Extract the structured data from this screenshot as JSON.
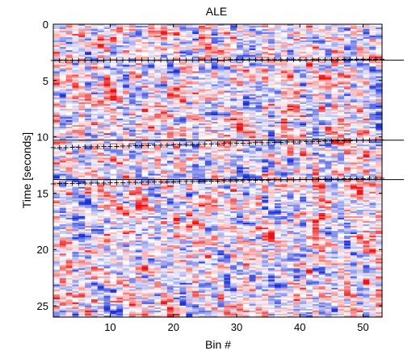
{
  "chart_data": {
    "type": "heatmap",
    "title": "ALE",
    "xlabel": "Bin #",
    "ylabel": "Time [seconds]",
    "xlim": [
      1,
      53
    ],
    "ylim": [
      0,
      26
    ],
    "y_reversed": true,
    "x_ticks": [
      10,
      20,
      30,
      40,
      50
    ],
    "y_ticks": [
      0,
      5,
      10,
      15,
      20,
      25
    ],
    "colormap": [
      "#1e32dc",
      "#ffffff",
      "#ee1111"
    ],
    "boundary_times": [
      3.2,
      10.3,
      13.8
    ],
    "marker_tracks": [
      {
        "y_start": 3.15,
        "y_end": 3.05
      },
      {
        "y_start": 10.9,
        "y_end": 10.2
      },
      {
        "y_start": 14.1,
        "y_end": 13.6
      }
    ],
    "marker_symbol": "+",
    "line_color": "#000000"
  }
}
